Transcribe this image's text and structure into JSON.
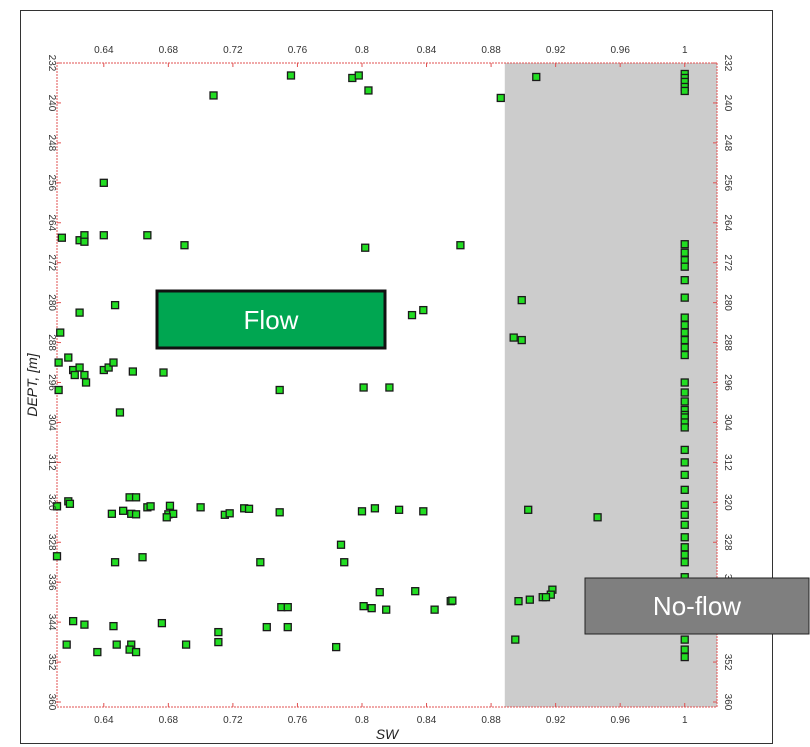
{
  "chart_data": {
    "type": "scatter",
    "xlabel": "SW",
    "ylabel": "DEPT, [m]",
    "xlim": [
      0.611,
      1.02
    ],
    "ylim": [
      232,
      361
    ],
    "y_inverted": true,
    "x_ticks": [
      0.64,
      0.68,
      0.72,
      0.76,
      0.8,
      0.84,
      0.88,
      0.92,
      0.96,
      1
    ],
    "x_tick_labels": [
      "0.64",
      "0.68",
      "0.72",
      "0.76",
      "0.8",
      "0.84",
      "0.88",
      "0.92",
      "0.96",
      "1"
    ],
    "y_ticks": [
      232,
      240,
      248,
      256,
      264,
      272,
      280,
      288,
      296,
      304,
      312,
      320,
      328,
      336,
      344,
      352,
      360
    ],
    "y_tick_labels": [
      "232",
      "240",
      "248",
      "256",
      "264",
      "272",
      "280",
      "288",
      "296",
      "304",
      "312",
      "320",
      "328",
      "336",
      "344",
      "352",
      "360"
    ],
    "shaded_region": {
      "x_from": 0.8885,
      "x_to": 1.02,
      "color": "#cccccc"
    },
    "annotations": [
      {
        "label": "Flow",
        "fill": "#00a651"
      },
      {
        "label": "No-flow",
        "fill": "#7f7f7f"
      }
    ],
    "marker_color": "#22dd22",
    "marker_edge": "#1a1a1a",
    "axis_color": "#e05050",
    "points": [
      [
        0.708,
        238.5
      ],
      [
        0.756,
        234.5
      ],
      [
        0.794,
        235.0
      ],
      [
        0.798,
        234.5
      ],
      [
        0.804,
        237.5
      ],
      [
        0.886,
        239.0
      ],
      [
        0.908,
        234.8
      ],
      [
        0.64,
        256.0
      ],
      [
        0.614,
        267.0
      ],
      [
        0.625,
        267.5
      ],
      [
        0.628,
        266.5
      ],
      [
        0.628,
        267.8
      ],
      [
        0.64,
        266.5
      ],
      [
        0.667,
        266.5
      ],
      [
        0.69,
        268.5
      ],
      [
        0.802,
        269.0
      ],
      [
        0.861,
        268.5
      ],
      [
        0.647,
        280.5
      ],
      [
        0.625,
        282.0
      ],
      [
        0.838,
        281.5
      ],
      [
        0.831,
        282.5
      ],
      [
        0.899,
        279.5
      ],
      [
        0.613,
        286.0
      ],
      [
        0.899,
        287.5
      ],
      [
        0.894,
        287.0
      ],
      [
        0.618,
        291.0
      ],
      [
        0.612,
        292.0
      ],
      [
        0.621,
        293.5
      ],
      [
        0.622,
        294.5
      ],
      [
        0.625,
        293.0
      ],
      [
        0.628,
        294.5
      ],
      [
        0.629,
        296.0
      ],
      [
        0.64,
        293.5
      ],
      [
        0.643,
        293.0
      ],
      [
        0.646,
        292.0
      ],
      [
        0.658,
        293.8
      ],
      [
        0.677,
        294.0
      ],
      [
        0.612,
        297.5
      ],
      [
        0.749,
        297.5
      ],
      [
        0.801,
        297.0
      ],
      [
        0.817,
        297.0
      ],
      [
        0.65,
        302.0
      ],
      [
        0.611,
        320.8
      ],
      [
        0.618,
        319.8
      ],
      [
        0.619,
        320.3
      ],
      [
        0.656,
        319.0
      ],
      [
        0.66,
        319.0
      ],
      [
        0.667,
        321.0
      ],
      [
        0.669,
        320.8
      ],
      [
        0.681,
        320.7
      ],
      [
        0.7,
        321.0
      ],
      [
        0.727,
        321.2
      ],
      [
        0.73,
        321.3
      ],
      [
        0.645,
        322.3
      ],
      [
        0.652,
        321.7
      ],
      [
        0.657,
        322.3
      ],
      [
        0.66,
        322.4
      ],
      [
        0.68,
        322.4
      ],
      [
        0.683,
        322.3
      ],
      [
        0.679,
        323.0
      ],
      [
        0.715,
        322.5
      ],
      [
        0.718,
        322.2
      ],
      [
        0.749,
        322.0
      ],
      [
        0.8,
        321.8
      ],
      [
        0.808,
        321.2
      ],
      [
        0.823,
        321.5
      ],
      [
        0.838,
        321.8
      ],
      [
        0.903,
        321.5
      ],
      [
        0.946,
        323.0
      ],
      [
        0.611,
        330.8
      ],
      [
        0.787,
        328.5
      ],
      [
        0.664,
        331.0
      ],
      [
        0.647,
        332.0
      ],
      [
        0.737,
        332.0
      ],
      [
        0.789,
        332.0
      ],
      [
        0.811,
        338.0
      ],
      [
        0.833,
        337.8
      ],
      [
        0.855,
        339.8
      ],
      [
        0.856,
        339.7
      ],
      [
        0.918,
        337.5
      ],
      [
        0.917,
        338.5
      ],
      [
        0.912,
        339.0
      ],
      [
        0.914,
        339.0
      ],
      [
        0.904,
        339.5
      ],
      [
        0.897,
        339.8
      ],
      [
        0.75,
        341.0
      ],
      [
        0.754,
        341.0
      ],
      [
        0.801,
        340.8
      ],
      [
        0.806,
        341.2
      ],
      [
        0.815,
        341.5
      ],
      [
        0.845,
        341.5
      ],
      [
        0.621,
        343.8
      ],
      [
        0.628,
        344.5
      ],
      [
        0.676,
        344.2
      ],
      [
        0.646,
        344.8
      ],
      [
        0.741,
        345.0
      ],
      [
        0.754,
        345.0
      ],
      [
        0.711,
        346.0
      ],
      [
        0.617,
        348.5
      ],
      [
        0.648,
        348.5
      ],
      [
        0.657,
        348.5
      ],
      [
        0.656,
        349.5
      ],
      [
        0.66,
        350.0
      ],
      [
        0.691,
        348.5
      ],
      [
        0.711,
        348.0
      ],
      [
        0.784,
        349.0
      ],
      [
        0.636,
        350.0
      ],
      [
        0.895,
        347.5
      ],
      [
        1,
        234.2
      ],
      [
        1,
        235.0
      ],
      [
        1,
        235.8
      ],
      [
        1,
        236.8
      ],
      [
        1,
        237.6
      ],
      [
        1,
        268.3
      ],
      [
        1,
        270.0
      ],
      [
        1,
        271.5
      ],
      [
        1,
        272.8
      ],
      [
        1,
        275.5
      ],
      [
        1,
        279.0
      ],
      [
        1,
        283.0
      ],
      [
        1,
        284.5
      ],
      [
        1,
        286.0
      ],
      [
        1,
        287.5
      ],
      [
        1,
        289.0
      ],
      [
        1,
        290.5
      ],
      [
        1,
        296.0
      ],
      [
        1,
        298.0
      ],
      [
        1,
        299.8
      ],
      [
        1,
        301.5
      ],
      [
        1,
        302.5
      ],
      [
        1,
        303.0
      ],
      [
        1,
        304.0
      ],
      [
        1,
        305.0
      ],
      [
        1,
        309.5
      ],
      [
        1,
        312.0
      ],
      [
        1,
        314.5
      ],
      [
        1,
        317.5
      ],
      [
        1,
        320.5
      ],
      [
        1,
        322.5
      ],
      [
        1,
        324.5
      ],
      [
        1,
        327.0
      ],
      [
        1,
        329.0
      ],
      [
        1,
        330.5
      ],
      [
        1,
        332.0
      ],
      [
        1,
        335.0
      ],
      [
        1,
        338.0
      ],
      [
        1,
        340.5
      ],
      [
        1,
        343.0
      ],
      [
        1,
        345.5
      ],
      [
        1,
        347.5
      ],
      [
        1,
        349.5
      ],
      [
        1,
        351.0
      ]
    ]
  }
}
